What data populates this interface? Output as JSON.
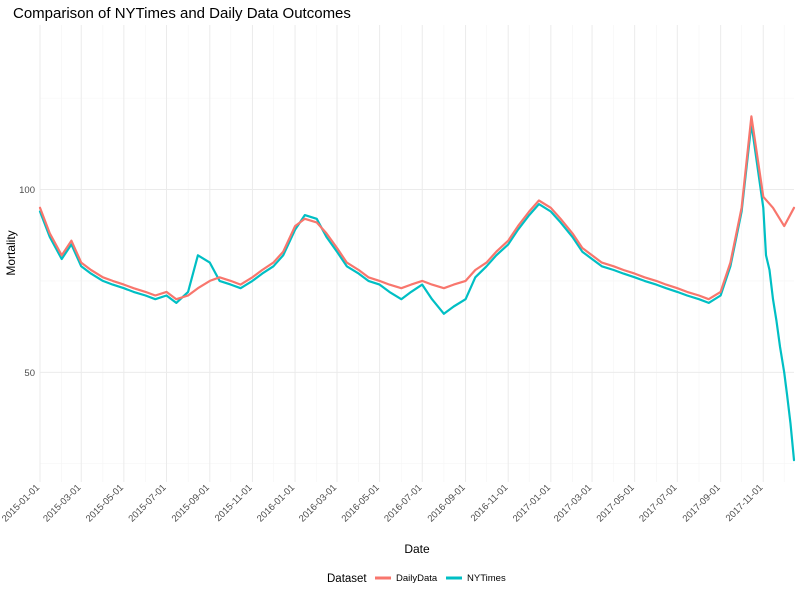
{
  "chart_data": {
    "type": "line",
    "title": "Comparison of NYTimes and Daily Data Outcomes",
    "xlabel": "Date",
    "ylabel": "Mortality",
    "x_range": [
      "2015-01-01",
      "2017-12-15"
    ],
    "xlim": [
      "2015-01-01",
      "2017-12-15"
    ],
    "ylim": [
      20,
      145
    ],
    "x_ticks": [
      "2015-01-01",
      "2015-03-01",
      "2015-05-01",
      "2015-07-01",
      "2015-09-01",
      "2015-11-01",
      "2016-01-01",
      "2016-03-01",
      "2016-05-01",
      "2016-07-01",
      "2016-09-01",
      "2016-11-01",
      "2017-01-01",
      "2017-03-01",
      "2017-05-01",
      "2017-07-01",
      "2017-09-01",
      "2017-11-01"
    ],
    "y_ticks": [
      50,
      100
    ],
    "grid": true,
    "legend": {
      "title": "Dataset",
      "position": "bottom"
    },
    "series": [
      {
        "name": "DailyData",
        "color": "#F8766D",
        "x": [
          "2015-01-01",
          "2015-01-15",
          "2015-02-01",
          "2015-02-15",
          "2015-03-01",
          "2015-03-15",
          "2015-04-01",
          "2015-04-15",
          "2015-05-01",
          "2015-05-15",
          "2015-06-01",
          "2015-06-15",
          "2015-07-01",
          "2015-07-15",
          "2015-08-01",
          "2015-08-15",
          "2015-09-01",
          "2015-09-15",
          "2015-10-01",
          "2015-10-15",
          "2015-11-01",
          "2015-11-15",
          "2015-12-01",
          "2015-12-15",
          "2016-01-01",
          "2016-01-15",
          "2016-02-01",
          "2016-02-15",
          "2016-03-01",
          "2016-03-15",
          "2016-04-01",
          "2016-04-15",
          "2016-05-01",
          "2016-05-15",
          "2016-06-01",
          "2016-06-15",
          "2016-07-01",
          "2016-07-15",
          "2016-08-01",
          "2016-08-15",
          "2016-09-01",
          "2016-09-15",
          "2016-10-01",
          "2016-10-15",
          "2016-11-01",
          "2016-11-15",
          "2016-12-01",
          "2016-12-15",
          "2017-01-01",
          "2017-01-15",
          "2017-02-01",
          "2017-02-15",
          "2017-03-01",
          "2017-03-15",
          "2017-04-01",
          "2017-04-15",
          "2017-05-01",
          "2017-05-15",
          "2017-06-01",
          "2017-06-15",
          "2017-07-01",
          "2017-07-15",
          "2017-08-01",
          "2017-08-15",
          "2017-09-01",
          "2017-09-15",
          "2017-10-01",
          "2017-10-15",
          "2017-11-01",
          "2017-11-15",
          "2017-12-01",
          "2017-12-15"
        ],
        "values": [
          95,
          88,
          82,
          86,
          80,
          78,
          76,
          75,
          74,
          73,
          72,
          71,
          72,
          70,
          71,
          73,
          75,
          76,
          75,
          74,
          76,
          78,
          80,
          83,
          90,
          92,
          91,
          88,
          84,
          80,
          78,
          76,
          75,
          74,
          73,
          74,
          75,
          74,
          73,
          74,
          75,
          78,
          80,
          83,
          86,
          90,
          94,
          97,
          95,
          92,
          88,
          84,
          82,
          80,
          79,
          78,
          77,
          76,
          75,
          74,
          73,
          72,
          71,
          70,
          72,
          80,
          95,
          120,
          98,
          95,
          90,
          95
        ]
      },
      {
        "name": "NYTimes",
        "color": "#00BFC4",
        "x": [
          "2015-01-01",
          "2015-01-15",
          "2015-02-01",
          "2015-02-15",
          "2015-03-01",
          "2015-03-15",
          "2015-04-01",
          "2015-04-15",
          "2015-05-01",
          "2015-05-15",
          "2015-06-01",
          "2015-06-15",
          "2015-07-01",
          "2015-07-15",
          "2015-08-01",
          "2015-08-15",
          "2015-09-01",
          "2015-09-15",
          "2015-10-01",
          "2015-10-15",
          "2015-11-01",
          "2015-11-15",
          "2015-12-01",
          "2015-12-15",
          "2016-01-01",
          "2016-01-15",
          "2016-02-01",
          "2016-02-15",
          "2016-03-01",
          "2016-03-15",
          "2016-04-01",
          "2016-04-15",
          "2016-05-01",
          "2016-05-15",
          "2016-06-01",
          "2016-06-15",
          "2016-07-01",
          "2016-07-15",
          "2016-08-01",
          "2016-08-15",
          "2016-09-01",
          "2016-09-15",
          "2016-10-01",
          "2016-10-15",
          "2016-11-01",
          "2016-11-15",
          "2016-12-01",
          "2016-12-15",
          "2017-01-01",
          "2017-01-15",
          "2017-02-01",
          "2017-02-15",
          "2017-03-01",
          "2017-03-15",
          "2017-04-01",
          "2017-04-15",
          "2017-05-01",
          "2017-05-15",
          "2017-06-01",
          "2017-06-15",
          "2017-07-01",
          "2017-07-15",
          "2017-08-01",
          "2017-08-15",
          "2017-09-01",
          "2017-09-15",
          "2017-10-01",
          "2017-10-15",
          "2017-11-01",
          "2017-11-05",
          "2017-11-10",
          "2017-11-15",
          "2017-11-20",
          "2017-11-25",
          "2017-12-01",
          "2017-12-05",
          "2017-12-10",
          "2017-12-15"
        ],
        "values": [
          94,
          87,
          81,
          85,
          79,
          77,
          75,
          74,
          73,
          72,
          71,
          70,
          71,
          69,
          72,
          82,
          80,
          75,
          74,
          73,
          75,
          77,
          79,
          82,
          89,
          93,
          92,
          87,
          83,
          79,
          77,
          75,
          74,
          72,
          70,
          72,
          74,
          70,
          66,
          68,
          70,
          76,
          79,
          82,
          85,
          89,
          93,
          96,
          94,
          91,
          87,
          83,
          81,
          79,
          78,
          77,
          76,
          75,
          74,
          73,
          72,
          71,
          70,
          69,
          71,
          79,
          94,
          118,
          95,
          82,
          78,
          70,
          64,
          57,
          50,
          44,
          36,
          26
        ]
      }
    ]
  }
}
